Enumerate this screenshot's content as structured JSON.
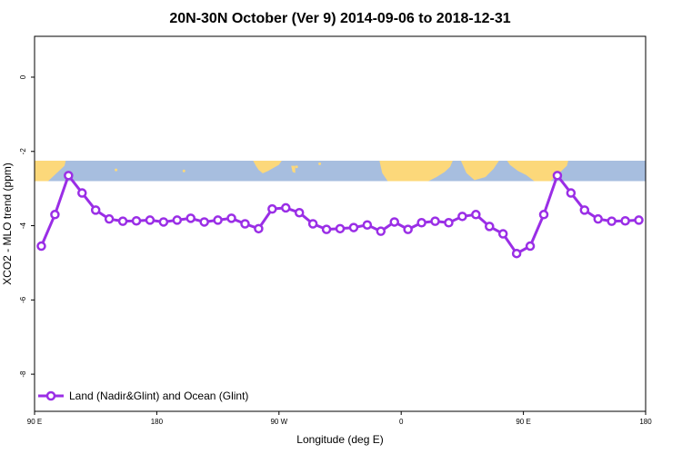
{
  "chart_data": {
    "type": "line",
    "title": "20N-30N October (Ver 9)   2014-09-06 to 2018-12-31",
    "xlabel": "Longitude (deg E)",
    "ylabel": "XCO2 - MLO trend (ppm)",
    "xlim": [
      90,
      540
    ],
    "ylim": [
      -9,
      1.1
    ],
    "x_ticks": [
      {
        "value": 90,
        "label": "90 E"
      },
      {
        "value": 180,
        "label": "180"
      },
      {
        "value": 270,
        "label": "90 W"
      },
      {
        "value": 360,
        "label": "0"
      },
      {
        "value": 450,
        "label": "90 E"
      },
      {
        "value": 540,
        "label": "180"
      }
    ],
    "y_ticks": [
      {
        "value": 0,
        "label": "0"
      },
      {
        "value": -2,
        "label": "-2"
      },
      {
        "value": -4,
        "label": "-4"
      },
      {
        "value": -6,
        "label": "-6"
      },
      {
        "value": -8,
        "label": "-8"
      }
    ],
    "grid": false,
    "legend": {
      "position": "bottom-left"
    },
    "map_strip": {
      "y_range": [
        -2.8,
        -2.25
      ],
      "ocean_color": "#a7bedf",
      "land_color": "#fcd87a"
    },
    "series": [
      {
        "name": "Land (Nadir&Glint) and Ocean (Glint)",
        "color": "#9a2ee6",
        "x": [
          95,
          105,
          115,
          125,
          135,
          145,
          155,
          165,
          175,
          185,
          195,
          205,
          215,
          225,
          235,
          245,
          255,
          265,
          275,
          285,
          295,
          305,
          315,
          325,
          335,
          345,
          355,
          365,
          375,
          385,
          395,
          405,
          415,
          425,
          435,
          445,
          455,
          465,
          475,
          485,
          495,
          505,
          515,
          525,
          535
        ],
        "y": [
          -4.55,
          -3.7,
          -2.65,
          -3.12,
          -3.58,
          -3.82,
          -3.88,
          -3.87,
          -3.85,
          -3.9,
          -3.85,
          -3.8,
          -3.9,
          -3.85,
          -3.8,
          -3.95,
          -4.08,
          -3.55,
          -3.52,
          -3.65,
          -3.95,
          -4.1,
          -4.08,
          -4.05,
          -3.98,
          -4.15,
          -3.9,
          -4.1,
          -3.92,
          -3.88,
          -3.92,
          -3.75,
          -3.7,
          -4.02,
          -4.22,
          -4.75,
          -4.55,
          -3.7,
          -2.65,
          -3.12,
          -3.58,
          -3.82,
          -3.88,
          -3.87,
          -3.85
        ]
      }
    ]
  }
}
